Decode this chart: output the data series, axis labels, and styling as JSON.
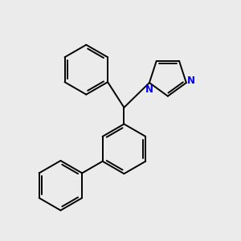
{
  "bg_color": "#ebebeb",
  "bond_color": "#000000",
  "N_color": "#0000ee",
  "lw": 1.4,
  "fig_size": [
    3.0,
    3.0
  ],
  "dpi": 100,
  "xlim": [
    0,
    10
  ],
  "ylim": [
    0,
    10
  ]
}
